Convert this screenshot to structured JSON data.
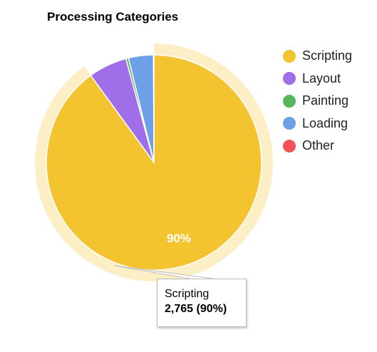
{
  "chart_data": {
    "type": "pie",
    "title": "Processing Categories",
    "legend_position": "right",
    "categories": [
      "Scripting",
      "Layout",
      "Painting",
      "Loading",
      "Other"
    ],
    "values": [
      2765,
      178,
      12,
      115,
      2
    ],
    "colors": [
      "#f4c430",
      "#9f6ee8",
      "#58b55f",
      "#6ea0e8",
      "#f25157"
    ],
    "slice_labels": [
      "90%",
      "",
      "",
      "",
      ""
    ],
    "highlighted": "Scripting"
  },
  "tooltip": {
    "category": "Scripting",
    "value": "2,765 (90%)"
  }
}
